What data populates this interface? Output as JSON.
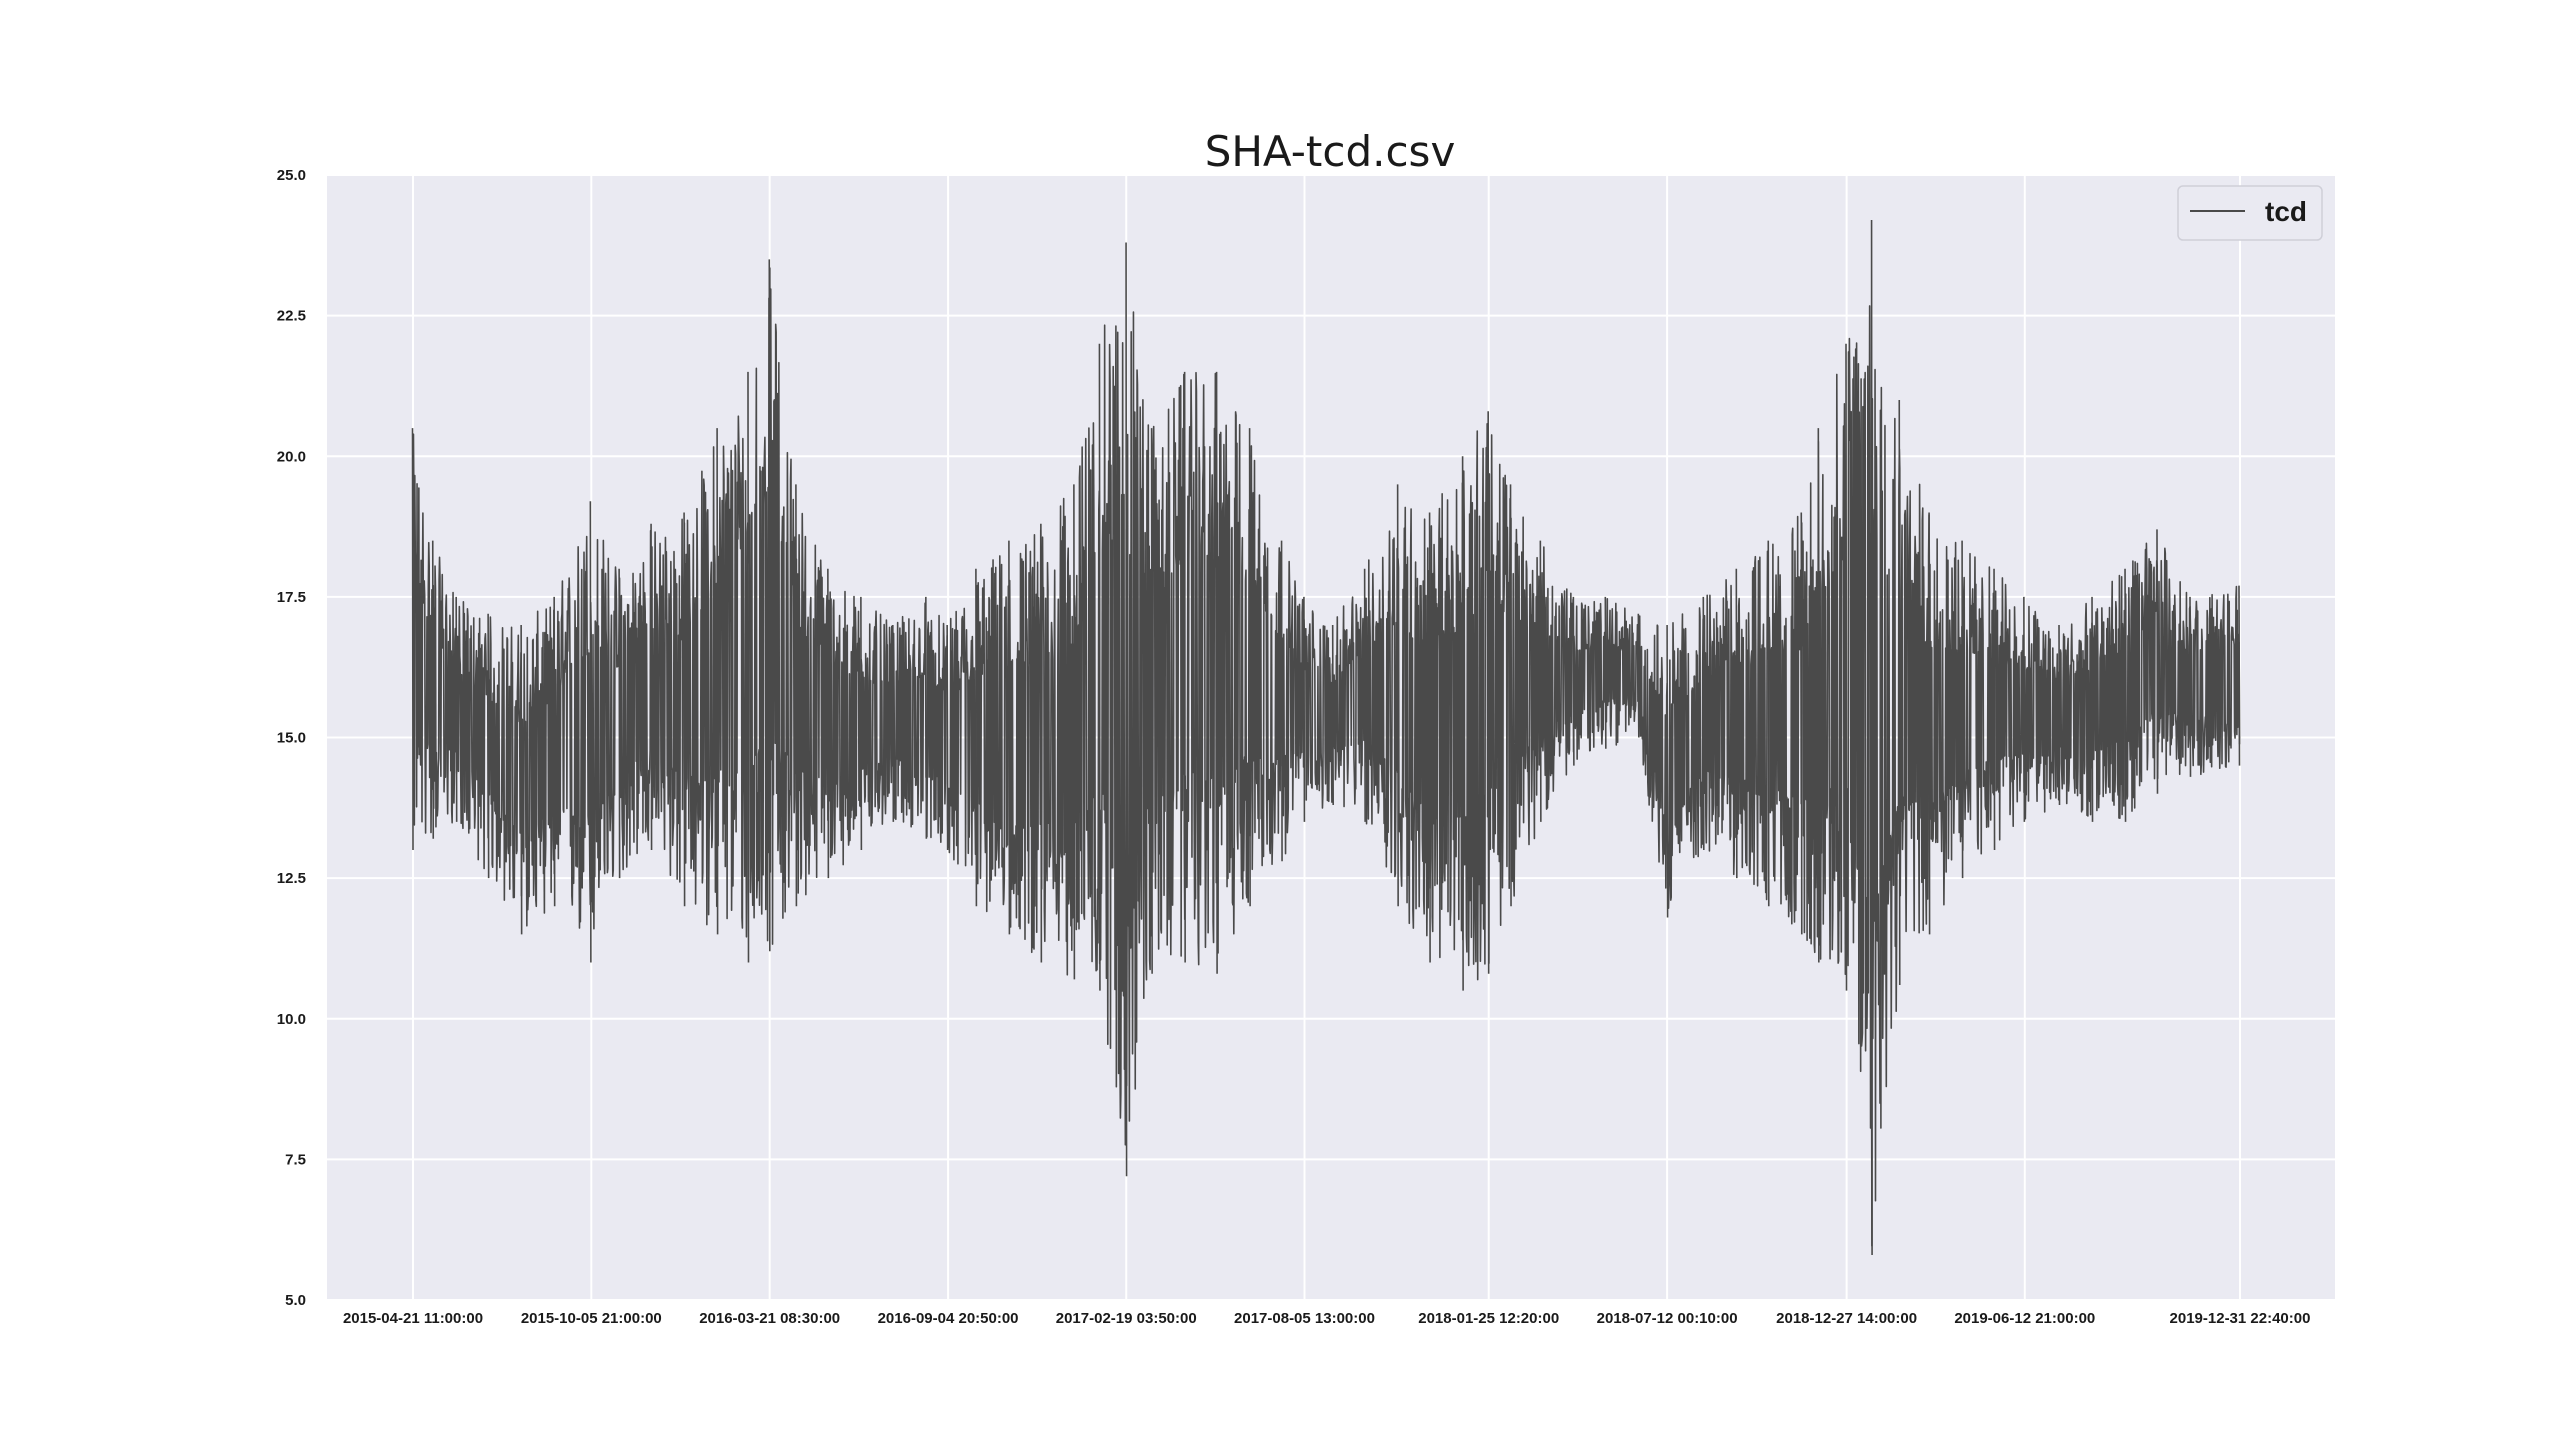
{
  "chart_data": {
    "type": "line",
    "title": "SHA-tcd.csv",
    "xlabel": "",
    "ylabel": "",
    "ylim": [
      5.0,
      25.0
    ],
    "yticks": [
      "5.0",
      "7.5",
      "10.0",
      "12.5",
      "15.0",
      "17.5",
      "20.0",
      "22.5",
      "25.0"
    ],
    "xticks": [
      "2015-04-21 11:00:00",
      "2015-10-05 21:00:00",
      "2016-03-21 08:30:00",
      "2016-09-04 20:50:00",
      "2017-02-19 03:50:00",
      "2017-08-05 13:00:00",
      "2018-01-25 12:20:00",
      "2018-07-12 00:10:00",
      "2018-12-27 14:00:00",
      "2019-06-12 21:00:00",
      "2019-12-31 22:40:00"
    ],
    "x_range": [
      "2015-04-21 11:00:00",
      "2019-12-31 22:40:00"
    ],
    "grid": true,
    "legend_position": "top-right",
    "series": [
      {
        "name": "tcd",
        "color": "#4a4a4a",
        "envelope": {
          "x": [
            "2015-04-21",
            "2015-05-10",
            "2015-06-01",
            "2015-07-01",
            "2015-08-01",
            "2015-09-01",
            "2015-10-05",
            "2015-11-01",
            "2015-12-01",
            "2016-01-01",
            "2016-02-01",
            "2016-03-01",
            "2016-03-21",
            "2016-04-15",
            "2016-05-15",
            "2016-06-15",
            "2016-07-15",
            "2016-08-15",
            "2016-09-04",
            "2016-10-01",
            "2016-11-01",
            "2016-12-01",
            "2017-01-01",
            "2017-01-25",
            "2017-02-19",
            "2017-03-15",
            "2017-04-15",
            "2017-05-15",
            "2017-06-15",
            "2017-07-15",
            "2017-08-05",
            "2017-09-01",
            "2017-10-01",
            "2017-11-01",
            "2017-12-01",
            "2018-01-01",
            "2018-01-25",
            "2018-02-15",
            "2018-03-15",
            "2018-04-15",
            "2018-05-15",
            "2018-06-15",
            "2018-07-12",
            "2018-08-15",
            "2018-09-15",
            "2018-10-15",
            "2018-11-15",
            "2018-12-01",
            "2018-12-27",
            "2019-01-20",
            "2019-02-15",
            "2019-03-15",
            "2019-04-15",
            "2019-05-15",
            "2019-06-12",
            "2019-07-15",
            "2019-08-15",
            "2019-09-15",
            "2019-10-15",
            "2019-11-15",
            "2019-12-31"
          ],
          "upper": [
            20.5,
            18.5,
            17.5,
            17.2,
            17.0,
            17.5,
            19.2,
            18.0,
            18.8,
            19.0,
            20.5,
            21.5,
            23.5,
            19.5,
            18.0,
            17.5,
            17.0,
            17.5,
            17.0,
            18.0,
            18.5,
            18.8,
            19.5,
            22.0,
            23.8,
            20.5,
            21.5,
            21.5,
            20.5,
            18.5,
            17.5,
            17.0,
            18.0,
            19.5,
            19.0,
            20.0,
            20.8,
            19.5,
            18.5,
            17.5,
            17.5,
            17.2,
            17.0,
            17.5,
            18.0,
            18.5,
            19.0,
            20.5,
            22.0,
            24.2,
            21.0,
            19.0,
            18.5,
            18.0,
            17.5,
            17.0,
            17.5,
            18.0,
            18.7,
            17.5,
            17.7
          ],
          "lower": [
            13.0,
            13.2,
            13.5,
            12.5,
            11.5,
            12.0,
            11.0,
            12.5,
            13.0,
            12.0,
            11.5,
            11.0,
            11.2,
            12.0,
            12.5,
            13.0,
            13.5,
            13.2,
            13.0,
            12.0,
            11.5,
            11.0,
            10.7,
            10.5,
            7.2,
            10.8,
            11.0,
            10.8,
            12.0,
            12.8,
            13.5,
            13.8,
            13.5,
            12.0,
            11.0,
            10.5,
            10.8,
            12.0,
            13.5,
            14.5,
            14.8,
            15.0,
            11.8,
            13.0,
            12.5,
            12.0,
            11.5,
            11.0,
            10.5,
            5.8,
            10.6,
            11.5,
            12.5,
            13.0,
            13.5,
            13.8,
            13.5,
            13.5,
            14.0,
            14.3,
            14.5
          ]
        }
      }
    ]
  }
}
